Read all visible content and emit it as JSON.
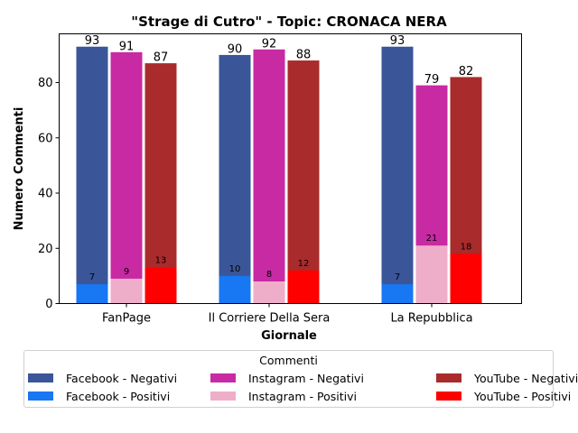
{
  "chart_data": {
    "type": "bar",
    "title": "\"Strage di Cutro\" - Topic: CRONACA NERA",
    "xlabel": "Giornale",
    "ylabel": "Numero Commenti",
    "categories": [
      "FanPage",
      "Il Corriere Della Sera",
      "La Repubblica"
    ],
    "ylim": [
      0,
      97.65
    ],
    "yticks": [
      "0",
      "20",
      "40",
      "60",
      "80"
    ],
    "grid": false,
    "legend_position": "bottom",
    "legend_title": "Commenti",
    "series": [
      {
        "name": "Facebook - Negativi",
        "platform": "Facebook",
        "color": "#3a5699",
        "values": [
          93,
          90,
          93
        ]
      },
      {
        "name": "Facebook - Positivi",
        "platform": "Facebook",
        "color": "#1877f2",
        "values": [
          7,
          10,
          7
        ]
      },
      {
        "name": "Instagram - Negativi",
        "platform": "Instagram",
        "color": "#c82aa3",
        "values": [
          91,
          92,
          79
        ]
      },
      {
        "name": "Instagram - Positivi",
        "platform": "Instagram",
        "color": "#eeaec9",
        "values": [
          9,
          8,
          21
        ]
      },
      {
        "name": "YouTube - Negativi",
        "platform": "YouTube",
        "color": "#aa2b2b",
        "values": [
          87,
          88,
          82
        ]
      },
      {
        "name": "YouTube - Positivi",
        "platform": "YouTube",
        "color": "#ff0000",
        "values": [
          13,
          12,
          18
        ]
      }
    ]
  }
}
